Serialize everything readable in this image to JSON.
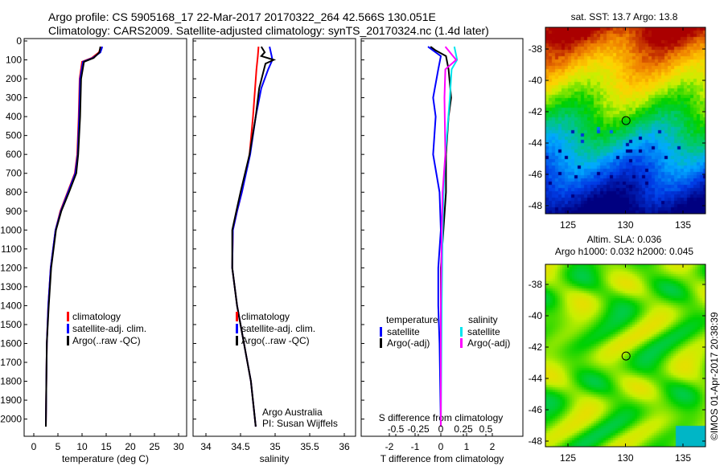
{
  "header": {
    "line1": "Argo profile: CS 5905168_17 22-Mar-2017 20170322_264 42.566S 130.051E",
    "line2": "Climatology: CARS2009. Satellite-adjusted climatology: synTS_20170324.nc (1.4d later)"
  },
  "colors": {
    "climatology": "#ff0000",
    "satellite": "#0000ff",
    "argo": "#000000",
    "sal_sat": "#00e5ee",
    "sal_argo": "#ff00ff"
  },
  "depth_ticks": [
    0,
    100,
    200,
    300,
    400,
    500,
    600,
    700,
    800,
    900,
    1000,
    1100,
    1200,
    1300,
    1400,
    1500,
    1600,
    1700,
    1800,
    1900,
    2000
  ],
  "chart_data": [
    {
      "type": "line",
      "xlabel": "temperature (deg C)",
      "xticks": [
        0,
        5,
        10,
        15,
        20,
        25,
        30
      ],
      "xlim": [
        -0.5,
        30.5
      ],
      "ylim": [
        2040,
        0
      ],
      "legend": [
        "climatology",
        "satellite-adj. clim.",
        "Argo(..raw -QC)"
      ],
      "series": [
        {
          "name": "climatology",
          "depth": [
            30,
            60,
            90,
            110,
            200,
            400,
            600,
            700,
            800,
            900,
            1000,
            1200,
            1400,
            1600,
            1800,
            2040
          ],
          "values": [
            13.9,
            13.5,
            12,
            10,
            9.5,
            9.3,
            9,
            8.5,
            7,
            5.5,
            4.5,
            3.5,
            3,
            2.7,
            2.6,
            2.5
          ]
        },
        {
          "name": "satellite-adj. clim.",
          "depth": [
            30,
            60,
            90,
            110,
            200,
            400,
            600,
            700,
            800,
            900,
            1000,
            1200,
            1400,
            1600,
            1800,
            2040
          ],
          "values": [
            14.2,
            13.8,
            12.2,
            10.2,
            9.6,
            9.4,
            9.1,
            8.6,
            7.1,
            5.6,
            4.5,
            3.5,
            3,
            2.7,
            2.6,
            2.5
          ]
        },
        {
          "name": "Argo(..raw -QC)",
          "depth": [
            30,
            60,
            90,
            110,
            200,
            400,
            600,
            700,
            800,
            900,
            1000,
            1200,
            1400,
            1600,
            1800,
            2040
          ],
          "values": [
            13.8,
            13.6,
            12.4,
            10.4,
            9.8,
            9.6,
            9.2,
            8.8,
            7.3,
            5.7,
            4.6,
            3.6,
            3.1,
            2.7,
            2.6,
            2.5
          ]
        }
      ]
    },
    {
      "type": "line",
      "xlabel": "salinity",
      "xticks": [
        34,
        34.5,
        35,
        35.5,
        36
      ],
      "xlim": [
        33.81,
        36.16
      ],
      "ylim": [
        2040,
        0
      ],
      "legend": [
        "climatology",
        "satellite-adj. clim.",
        "Argo(..raw -QC)"
      ],
      "annotation": [
        "Argo Australia",
        "PI: Susan Wijffels"
      ],
      "series": [
        {
          "name": "climatology",
          "depth": [
            30,
            80,
            150,
            250,
            400,
            600,
            800,
            900,
            1000,
            1200,
            1400,
            1600,
            1800,
            2040
          ],
          "values": [
            34.76,
            34.75,
            34.73,
            34.71,
            34.68,
            34.63,
            34.52,
            34.45,
            34.39,
            34.38,
            34.45,
            34.55,
            34.65,
            34.72
          ]
        },
        {
          "name": "satellite-adj. clim.",
          "depth": [
            30,
            80,
            100,
            150,
            250,
            400,
            600,
            800,
            900,
            1000,
            1200,
            1400,
            1600,
            1800,
            2040
          ],
          "values": [
            34.92,
            34.95,
            34.96,
            34.9,
            34.8,
            34.72,
            34.64,
            34.52,
            34.45,
            34.39,
            34.38,
            34.45,
            34.55,
            34.65,
            34.72
          ]
        },
        {
          "name": "Argo(..raw -QC)",
          "depth": [
            30,
            60,
            80,
            100,
            120,
            150,
            250,
            400,
            600,
            800,
            900,
            1000,
            1200,
            1400,
            1600,
            1800,
            2040
          ],
          "values": [
            34.8,
            34.85,
            34.8,
            34.98,
            34.86,
            34.84,
            34.77,
            34.72,
            34.63,
            34.5,
            34.44,
            34.38,
            34.38,
            34.45,
            34.55,
            34.65,
            34.72
          ]
        }
      ]
    },
    {
      "type": "line",
      "xlabel": "T difference from climatology",
      "x2label": "S difference from climatology",
      "xticks": [
        -2,
        -1,
        0,
        1,
        2
      ],
      "x2ticks": [
        "-0.5",
        "-0.25",
        "0",
        "0.25",
        "0.5"
      ],
      "xlim": [
        -3.1,
        2.9
      ],
      "ylim": [
        2040,
        0
      ],
      "legend_titles": [
        "temperature",
        "salinity"
      ],
      "legend": [
        "satellite",
        "Argo(-adj)",
        "satellite",
        "Argo(-adj)"
      ],
      "series": [
        {
          "name": "T satellite",
          "depth": [
            30,
            50,
            80,
            150,
            300,
            400,
            600,
            800,
            1000,
            1200,
            1400,
            1600,
            2040
          ],
          "values": [
            -0.5,
            -0.3,
            0,
            -0.1,
            -0.3,
            -0.2,
            -0.3,
            -0.05,
            0,
            -0.1,
            -0.1,
            -0.05,
            0
          ]
        },
        {
          "name": "T Argo(-adj)",
          "depth": [
            30,
            50,
            80,
            150,
            300,
            400,
            600,
            800,
            1000,
            1200,
            1400,
            1600,
            2040
          ],
          "values": [
            -0.4,
            -0.2,
            0.2,
            0.3,
            0.4,
            0.3,
            0.2,
            0.2,
            0.1,
            0,
            0,
            0,
            0
          ]
        },
        {
          "name": "S satellite",
          "depth": [
            30,
            100,
            150,
            300,
            600,
            800,
            1000,
            1400,
            2040
          ],
          "values": [
            0.15,
            0.18,
            0.12,
            0.1,
            0.05,
            0.03,
            0.02,
            0.01,
            0
          ]
        },
        {
          "name": "S Argo(-adj)",
          "depth": [
            30,
            100,
            150,
            300,
            600,
            800,
            1000,
            1400,
            2040
          ],
          "values": [
            0.05,
            0.17,
            0.05,
            0.04,
            0.05,
            0.02,
            0.01,
            0,
            0
          ]
        }
      ]
    }
  ],
  "maps": {
    "sst": {
      "title": "sat. SST: 13.7 Argo: 13.8"
    },
    "sla": {
      "title1": "Altim. SLA: 0.036",
      "title2": "Argo h1000: 0.032 h2000: 0.045"
    },
    "lat_ticks": [
      "-38",
      "-40",
      "-42",
      "-44",
      "-46",
      "-48"
    ],
    "lon_ticks": [
      "125",
      "130",
      "135"
    ],
    "float_position": {
      "lon": 130.05,
      "lat": -42.57
    },
    "credit": "©IMOS 01-Apr-2017 20:38:39"
  }
}
